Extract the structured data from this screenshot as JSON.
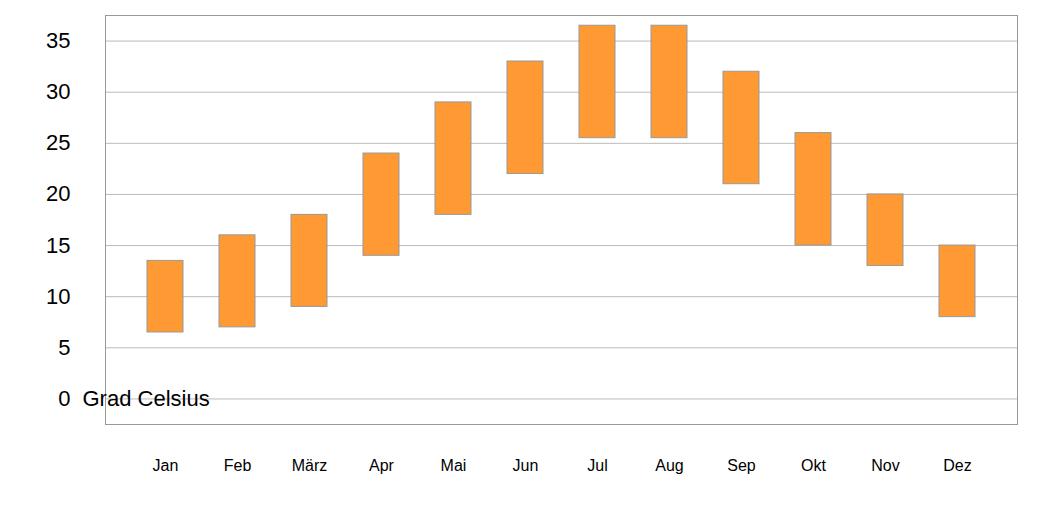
{
  "chart_data": {
    "type": "bar",
    "ylabel": "Grad Celsius",
    "categories": [
      "Jan",
      "Feb",
      "März",
      "Apr",
      "Mai",
      "Jun",
      "Jul",
      "Aug",
      "Sep",
      "Okt",
      "Nov",
      "Dez"
    ],
    "values": [
      [
        6.5,
        13.5
      ],
      [
        7,
        16
      ],
      [
        9,
        18
      ],
      [
        14,
        24
      ],
      [
        18,
        29
      ],
      [
        22,
        33
      ],
      [
        25.5,
        36.5
      ],
      [
        25.5,
        36.5
      ],
      [
        21,
        32
      ],
      [
        15,
        26
      ],
      [
        13,
        20
      ],
      [
        8,
        15
      ]
    ],
    "color": "#ff9933",
    "ylim": [
      -2.5,
      37.5
    ],
    "yticks": [
      0,
      5,
      10,
      15,
      20,
      25,
      30,
      35
    ],
    "grid": true
  }
}
